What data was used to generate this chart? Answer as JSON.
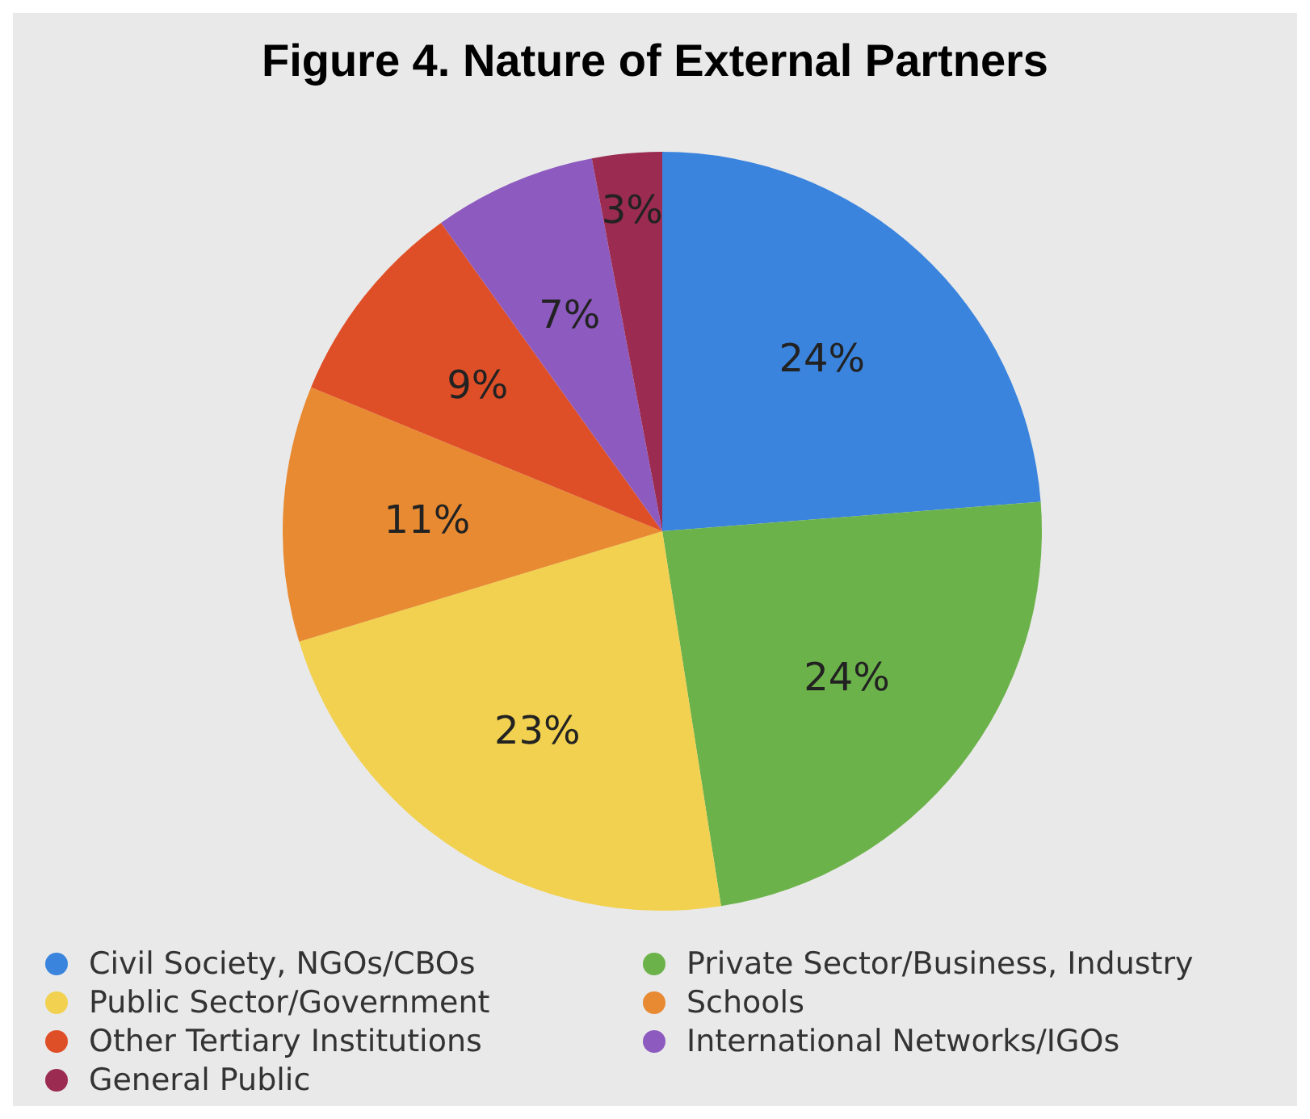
{
  "chart_data": {
    "type": "pie",
    "title": "Figure 4. Nature of External Partners",
    "categories": [
      "Civil Society, NGOs/CBOs",
      "Private Sector/Business, Industry",
      "Public Sector/Government",
      "Schools",
      "Other Tertiary Institutions",
      "International Networks/IGOs",
      "General Public"
    ],
    "values": [
      24,
      24,
      23,
      11,
      9,
      7,
      3
    ],
    "colors": [
      "#3a84de",
      "#6cb24a",
      "#f1d14f",
      "#e88a31",
      "#df4f27",
      "#8d5abf",
      "#9b2b50"
    ],
    "value_labels": [
      "24%",
      "24%",
      "23%",
      "11%",
      "9%",
      "7%",
      "3%"
    ],
    "legend": "bottom"
  }
}
